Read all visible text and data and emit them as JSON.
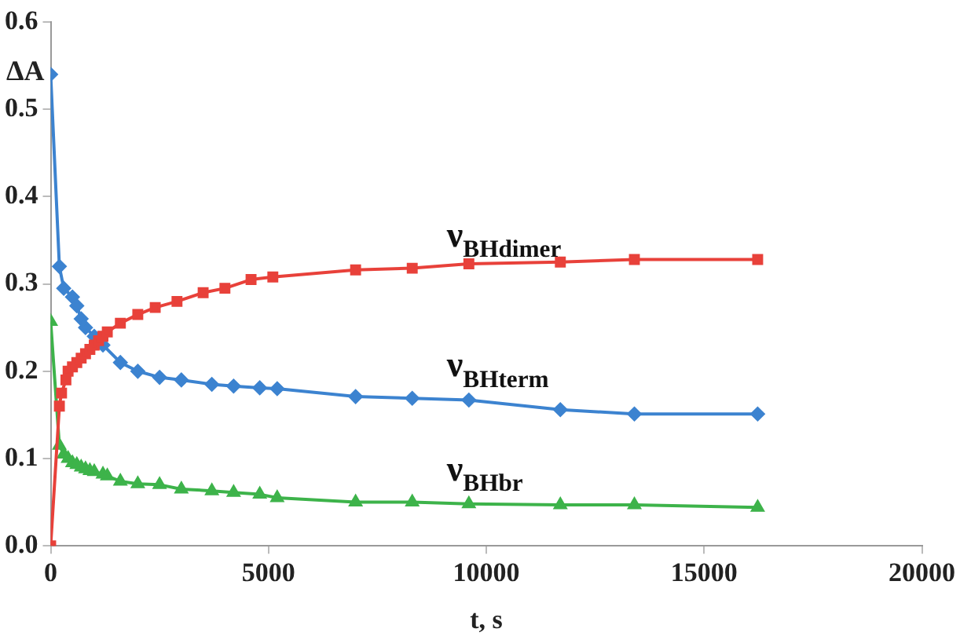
{
  "chart_data": {
    "type": "line",
    "xlabel": "t, s",
    "ylabel": "ΔA",
    "xlim": [
      0,
      20000
    ],
    "xticks": [
      0,
      5000,
      10000,
      15000,
      20000
    ],
    "ylim": [
      0,
      0.6
    ],
    "yticks": [
      {
        "value": 0,
        "label": "0.0"
      },
      {
        "value": 0.1,
        "label": "0.1"
      },
      {
        "value": 0.2,
        "label": "0.2"
      },
      {
        "value": 0.3,
        "label": "0.3"
      },
      {
        "value": 0.4,
        "label": "0.4"
      },
      {
        "value": 0.5,
        "label": "0.5"
      },
      {
        "value": 0.6,
        "label": "0.6"
      }
    ],
    "grid": false,
    "legend": false,
    "series": [
      {
        "name": "ν$_{BHdimer}$",
        "color": "#e8413a",
        "marker": "square",
        "x": [
          0,
          200,
          250,
          350,
          400,
          500,
          600,
          700,
          800,
          900,
          1000,
          1100,
          1200,
          1300,
          1600,
          2000,
          2400,
          2900,
          3500,
          4000,
          4600,
          5100,
          7000,
          8300,
          9600,
          11700,
          13400,
          16230
        ],
        "values": [
          0,
          0.16,
          0.175,
          0.19,
          0.2,
          0.205,
          0.21,
          0.215,
          0.22,
          0.225,
          0.23,
          0.235,
          0.24,
          0.245,
          0.255,
          0.265,
          0.273,
          0.28,
          0.29,
          0.295,
          0.305,
          0.308,
          0.316,
          0.318,
          0.323,
          0.325,
          0.328,
          0.328
        ]
      },
      {
        "name": "ν$_{BHterm}$",
        "color": "#3c83d0",
        "marker": "diamond",
        "x": [
          0,
          200,
          300,
          500,
          600,
          700,
          800,
          1000,
          1200,
          1600,
          2000,
          2500,
          3000,
          3700,
          4200,
          4800,
          5200,
          7000,
          8300,
          9600,
          11700,
          13400,
          16230
        ],
        "values": [
          0.54,
          0.32,
          0.295,
          0.285,
          0.275,
          0.26,
          0.25,
          0.24,
          0.23,
          0.21,
          0.2,
          0.193,
          0.19,
          0.185,
          0.183,
          0.181,
          0.18,
          0.171,
          0.169,
          0.167,
          0.156,
          0.151,
          0.151
        ]
      },
      {
        "name": "ν$_{BHbr}$",
        "color": "#3db34a",
        "marker": "triangle",
        "x": [
          0,
          200,
          300,
          400,
          500,
          600,
          700,
          800,
          900,
          1000,
          1200,
          1300,
          1600,
          2000,
          2500,
          3000,
          3700,
          4200,
          4800,
          5200,
          7000,
          8300,
          9600,
          11700,
          13400,
          16230
        ],
        "values": [
          0.257,
          0.115,
          0.105,
          0.1,
          0.095,
          0.093,
          0.09,
          0.088,
          0.086,
          0.085,
          0.082,
          0.08,
          0.074,
          0.071,
          0.07,
          0.065,
          0.063,
          0.061,
          0.059,
          0.055,
          0.05,
          0.05,
          0.048,
          0.047,
          0.047,
          0.044
        ]
      }
    ]
  }
}
